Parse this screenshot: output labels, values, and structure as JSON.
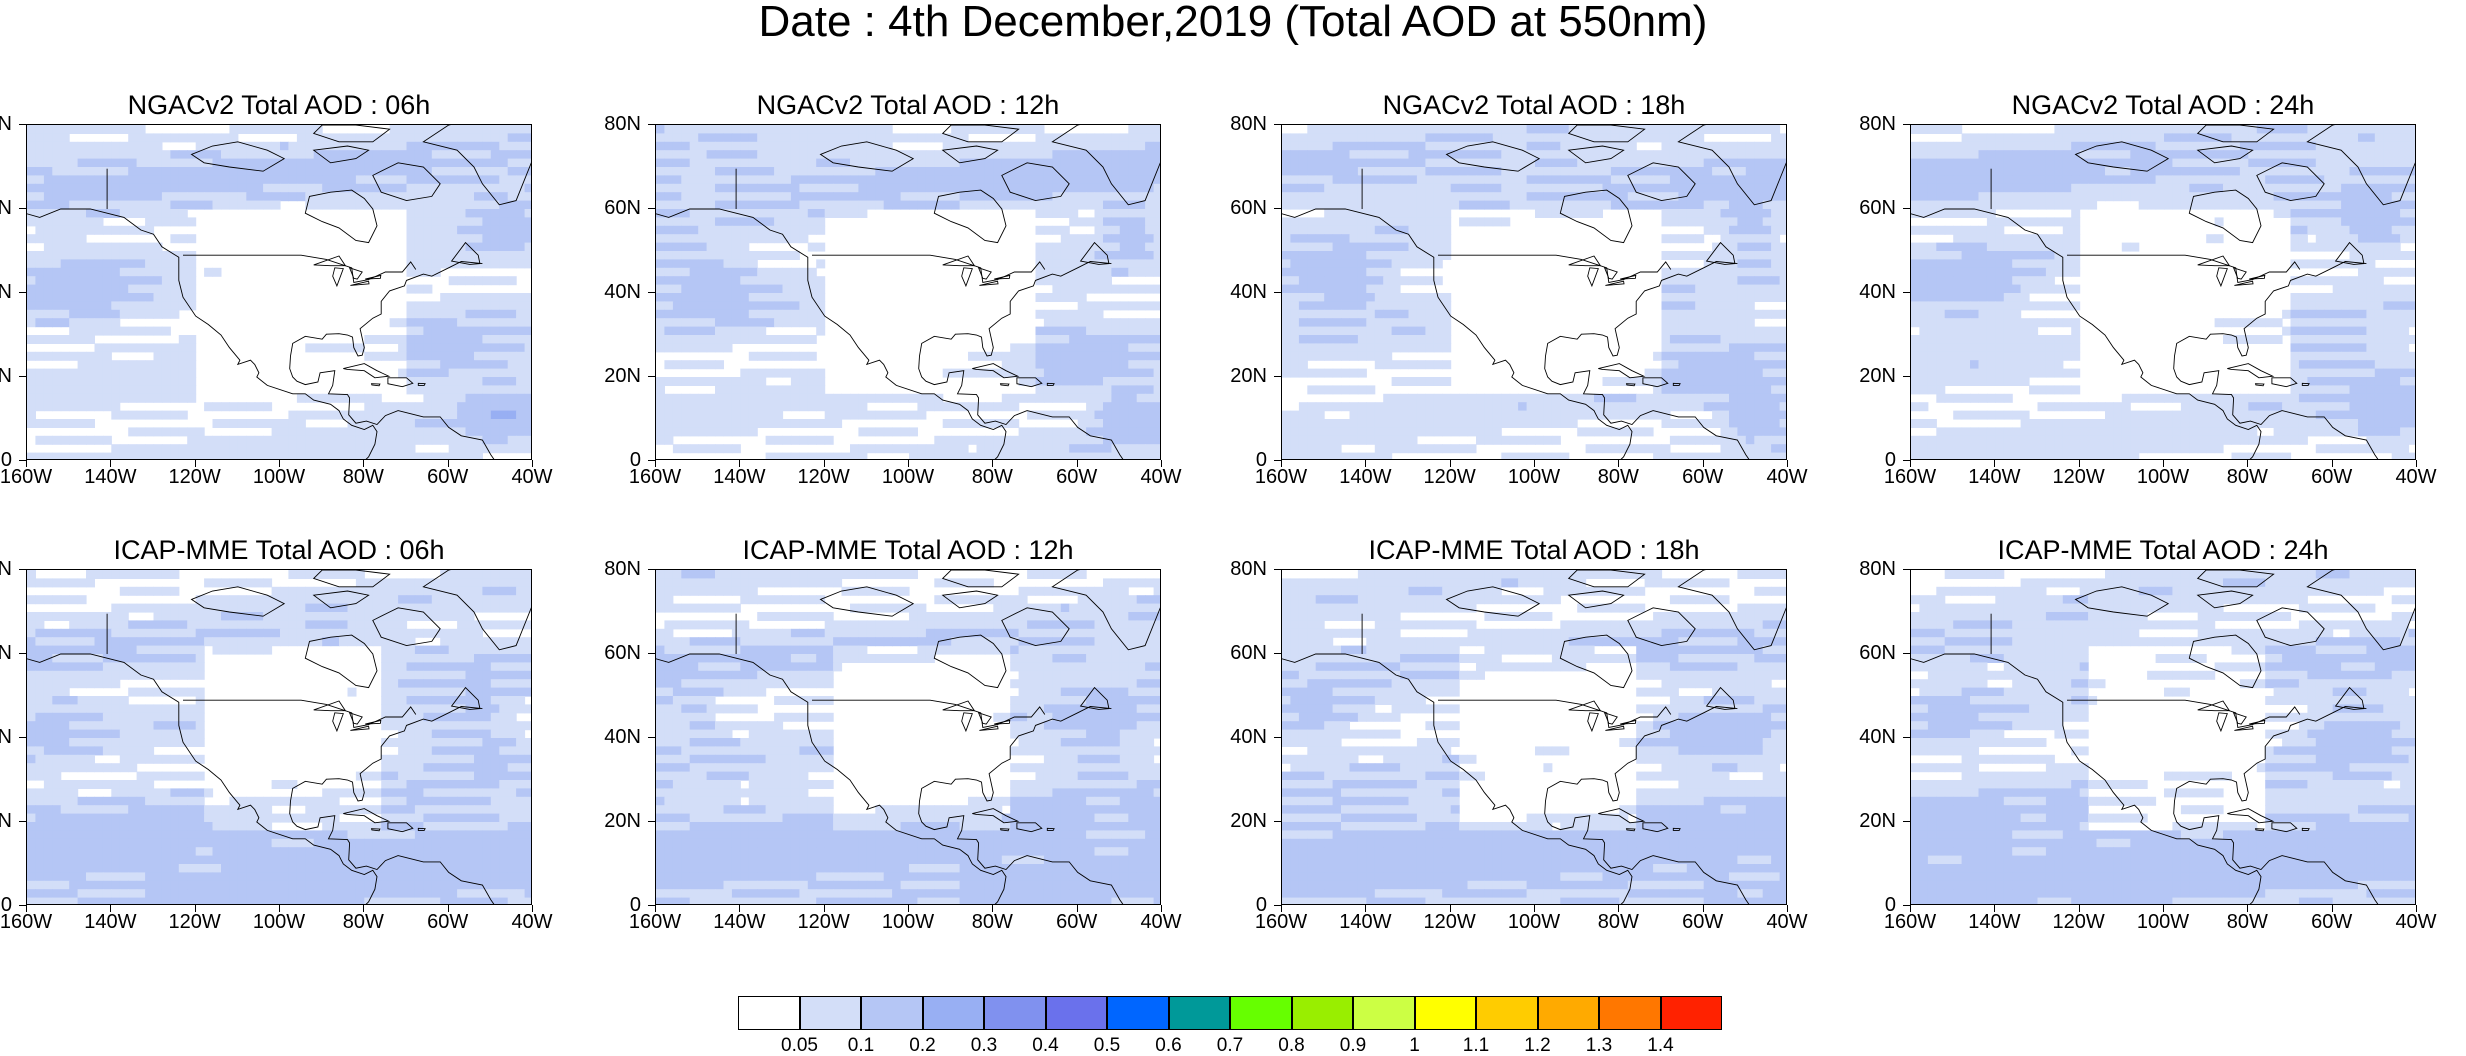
{
  "title": "Date : 4th December,2019 (Total AOD at 550nm)",
  "panels": [
    {
      "title": "NGACv2 Total AOD : 06h",
      "model": "ngac",
      "hour": 6
    },
    {
      "title": "NGACv2 Total AOD : 12h",
      "model": "ngac",
      "hour": 12
    },
    {
      "title": "NGACv2 Total AOD : 18h",
      "model": "ngac",
      "hour": 18
    },
    {
      "title": "NGACv2 Total AOD : 24h",
      "model": "ngac",
      "hour": 24
    },
    {
      "title": "ICAP-MME Total AOD : 06h",
      "model": "icap",
      "hour": 6
    },
    {
      "title": "ICAP-MME Total AOD : 12h",
      "model": "icap",
      "hour": 12
    },
    {
      "title": "ICAP-MME Total AOD : 18h",
      "model": "icap",
      "hour": 18
    },
    {
      "title": "ICAP-MME Total AOD : 24h",
      "model": "icap",
      "hour": 24
    }
  ],
  "axes": {
    "y_labels": [
      "80N",
      "60N",
      "40N",
      "20N",
      "0"
    ],
    "x_labels": [
      "160W",
      "140W",
      "120W",
      "100W",
      "80W",
      "60W",
      "40W"
    ],
    "lat_range": [
      0,
      80
    ],
    "lon_range": [
      -160,
      -40
    ]
  },
  "colorbar": {
    "labels": [
      "0.05",
      "0.1",
      "0.2",
      "0.3",
      "0.4",
      "0.5",
      "0.6",
      "0.7",
      "0.8",
      "0.9",
      "1",
      "1.1",
      "1.2",
      "1.3",
      "1.4"
    ],
    "colors": [
      "#ffffff",
      "#d3def8",
      "#b5c6f5",
      "#98aff3",
      "#8091ef",
      "#6a71ec",
      "#0066ff",
      "#009999",
      "#66ff00",
      "#99ee00",
      "#ccff44",
      "#ffff00",
      "#ffcc00",
      "#ffaa00",
      "#ff7700",
      "#ff2200"
    ]
  }
}
